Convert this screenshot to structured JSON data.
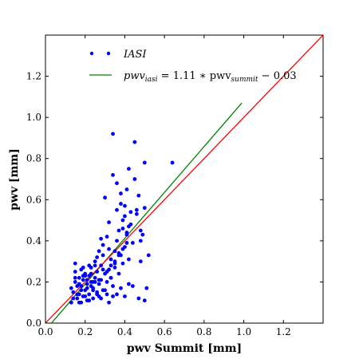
{
  "chart_data": {
    "type": "scatter",
    "xlabel": "pwv Summit [mm]",
    "ylabel": "pwv [mm]",
    "xlim": [
      0.0,
      1.4
    ],
    "ylim": [
      0.0,
      1.4
    ],
    "xticks": [
      "0.0",
      "0.2",
      "0.4",
      "0.6",
      "0.8",
      "1.0",
      "1.2"
    ],
    "yticks": [
      "0.0",
      "0.2",
      "0.4",
      "0.6",
      "0.8",
      "1.0",
      "1.2"
    ],
    "grid": false,
    "legend_position": "top-left",
    "series": [
      {
        "name": "IASI",
        "kind": "scatter",
        "color": "#0000ff",
        "x": [
          0.13,
          0.14,
          0.15,
          0.15,
          0.16,
          0.17,
          0.17,
          0.18,
          0.18,
          0.19,
          0.19,
          0.2,
          0.2,
          0.21,
          0.21,
          0.22,
          0.22,
          0.23,
          0.23,
          0.24,
          0.24,
          0.25,
          0.25,
          0.26,
          0.26,
          0.27,
          0.27,
          0.28,
          0.28,
          0.29,
          0.29,
          0.3,
          0.3,
          0.31,
          0.31,
          0.32,
          0.32,
          0.33,
          0.33,
          0.34,
          0.34,
          0.35,
          0.35,
          0.36,
          0.36,
          0.37,
          0.37,
          0.38,
          0.38,
          0.39,
          0.39,
          0.4,
          0.4,
          0.41,
          0.41,
          0.42,
          0.42,
          0.43,
          0.44,
          0.45,
          0.46,
          0.47,
          0.48,
          0.49,
          0.5,
          0.51,
          0.52,
          0.64,
          0.48,
          0.34,
          0.36,
          0.38,
          0.4,
          0.42,
          0.45,
          0.47,
          0.5,
          0.28,
          0.32,
          0.15,
          0.16,
          0.18,
          0.2,
          0.22,
          0.24,
          0.26,
          0.14,
          0.17,
          0.19,
          0.21,
          0.23,
          0.25,
          0.27,
          0.29,
          0.31,
          0.33,
          0.35,
          0.37,
          0.39,
          0.41,
          0.43,
          0.46,
          0.48,
          0.5,
          0.3,
          0.32,
          0.34,
          0.36,
          0.38,
          0.4,
          0.42,
          0.44,
          0.28,
          0.26,
          0.24,
          0.22,
          0.2,
          0.18,
          0.16,
          0.13,
          0.15,
          0.17,
          0.19,
          0.21,
          0.23,
          0.25,
          0.27,
          0.29,
          0.31,
          0.33,
          0.35,
          0.37,
          0.39,
          0.41
        ],
        "y": [
          0.17,
          0.12,
          0.2,
          0.29,
          0.14,
          0.22,
          0.1,
          0.18,
          0.26,
          0.13,
          0.21,
          0.16,
          0.24,
          0.11,
          0.19,
          0.23,
          0.14,
          0.2,
          0.27,
          0.17,
          0.12,
          0.22,
          0.3,
          0.15,
          0.25,
          0.19,
          0.13,
          0.28,
          0.21,
          0.16,
          0.33,
          0.24,
          0.61,
          0.2,
          0.14,
          0.26,
          0.49,
          0.31,
          0.22,
          0.92,
          0.18,
          0.35,
          0.27,
          0.55,
          0.4,
          0.24,
          0.45,
          0.58,
          0.33,
          0.29,
          0.5,
          0.37,
          0.52,
          0.43,
          0.65,
          0.31,
          0.47,
          0.54,
          0.39,
          0.88,
          0.53,
          0.12,
          0.3,
          0.43,
          0.78,
          0.17,
          0.33,
          0.78,
          0.45,
          0.72,
          0.68,
          0.63,
          0.57,
          0.75,
          0.7,
          0.62,
          0.56,
          0.41,
          0.36,
          0.25,
          0.18,
          0.16,
          0.23,
          0.28,
          0.2,
          0.32,
          0.15,
          0.19,
          0.27,
          0.21,
          0.24,
          0.28,
          0.35,
          0.38,
          0.42,
          0.22,
          0.29,
          0.34,
          0.46,
          0.39,
          0.48,
          0.55,
          0.4,
          0.11,
          0.16,
          0.1,
          0.13,
          0.14,
          0.17,
          0.13,
          0.19,
          0.18,
          0.12,
          0.14,
          0.16,
          0.11,
          0.13,
          0.1,
          0.12,
          0.1,
          0.22,
          0.14,
          0.23,
          0.17,
          0.18,
          0.2,
          0.21,
          0.26,
          0.25,
          0.28,
          0.3,
          0.33,
          0.36,
          0.44
        ]
      },
      {
        "name": "pwv_iasi = 1.11 * pwv_summit − 0.03",
        "kind": "line",
        "color": "#008000",
        "x": [
          0.03,
          0.99
        ],
        "y": [
          0.0,
          1.07
        ]
      },
      {
        "name": "",
        "kind": "line",
        "color": "#ff0000",
        "x": [
          0.0,
          1.4
        ],
        "y": [
          0.0,
          1.4
        ]
      }
    ],
    "legend": {
      "scatter_label_main": "IASI",
      "line_label_prefix": "pwv",
      "line_label_sub1": "iasi",
      "line_label_mid": " = 1.11 ∗ pwv",
      "line_label_sub2": "summit",
      "line_label_suffix": " − 0.03"
    }
  }
}
